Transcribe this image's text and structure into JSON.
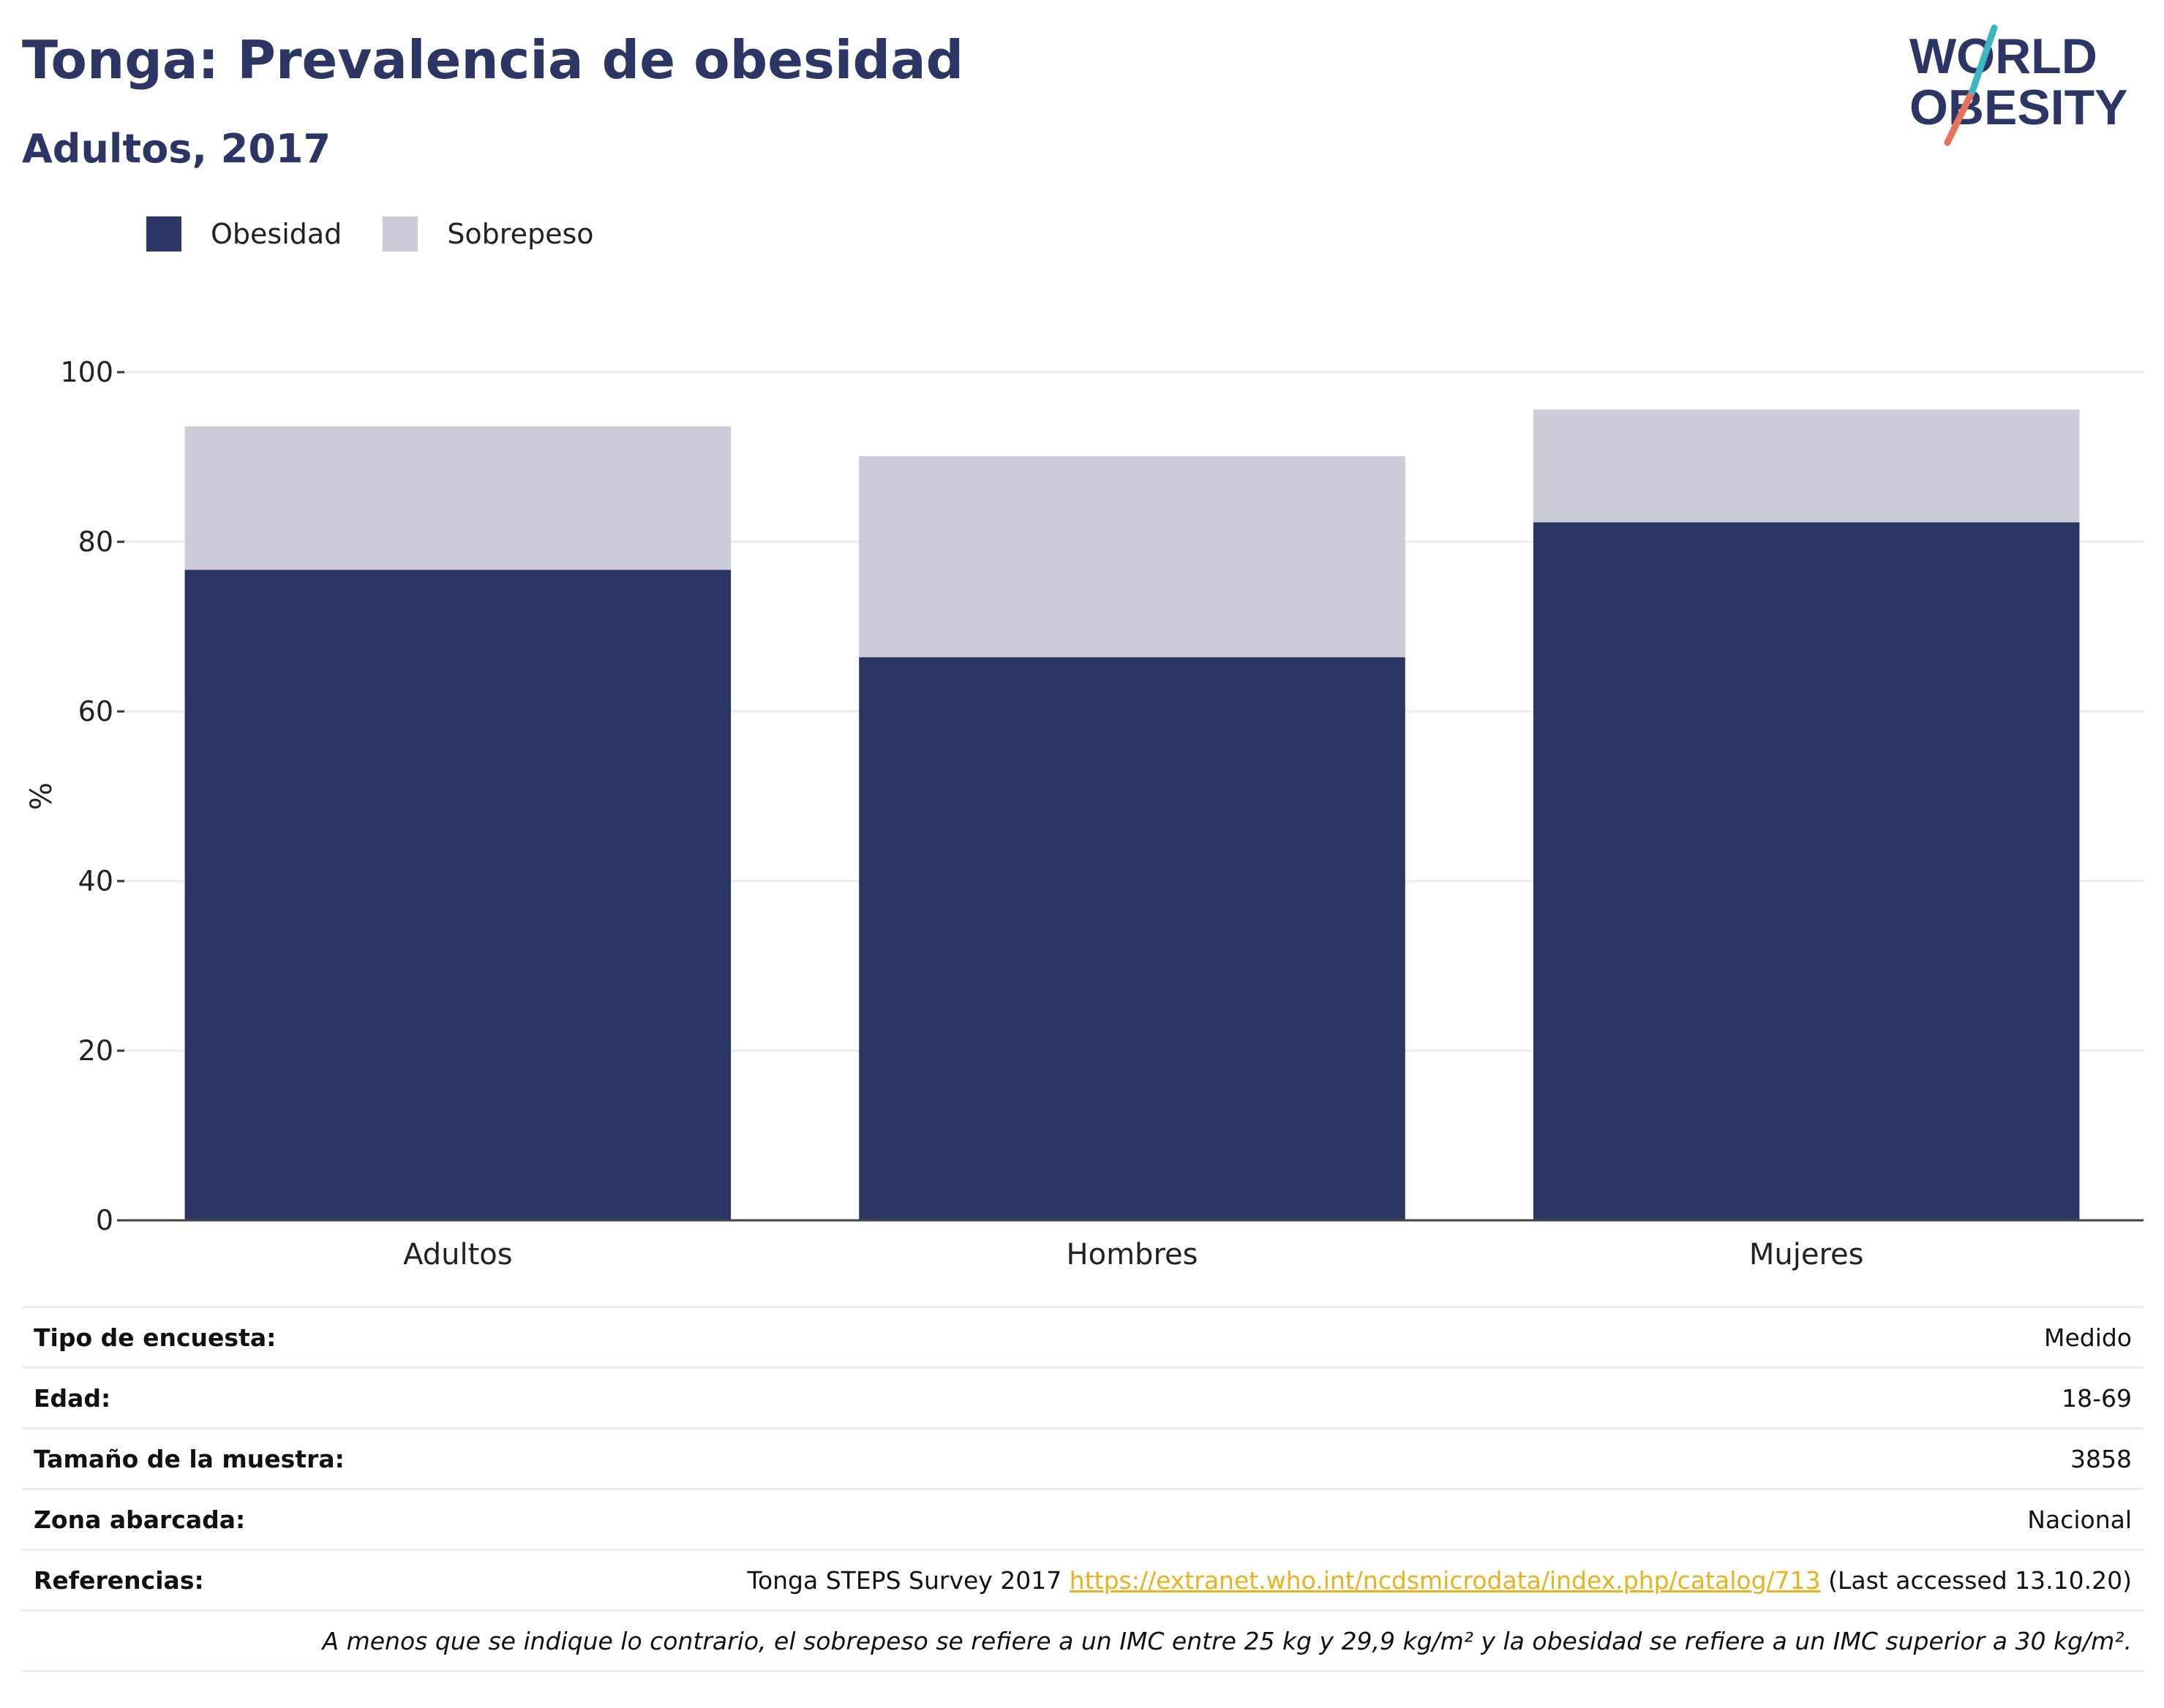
{
  "header": {
    "title": "Tonga: Prevalencia de obesidad",
    "subtitle": "Adultos, 2017"
  },
  "logo": {
    "line1": "WORLD",
    "line2": "OBESITY"
  },
  "colors": {
    "obesidad": "#2b3664",
    "sobrepeso": "#cbccd8",
    "title": "#2b3664",
    "link": "#e8b21f"
  },
  "chart_data": {
    "type": "bar",
    "stacked": true,
    "categories": [
      "Adultos",
      "Hombres",
      "Mujeres"
    ],
    "series": [
      {
        "name": "Obesidad",
        "values": [
          76.7,
          66.4,
          82.3
        ]
      },
      {
        "name": "Sobrepeso",
        "values": [
          16.9,
          23.7,
          13.3
        ]
      }
    ],
    "ylabel": "%",
    "ylim": [
      0,
      100
    ],
    "yticks": [
      0,
      20,
      40,
      60,
      80,
      100
    ],
    "grid": true,
    "legend": "top-left"
  },
  "meta": {
    "rows": [
      {
        "label": "Tipo de encuesta:",
        "value": "Medido"
      },
      {
        "label": "Edad:",
        "value": "18-69"
      },
      {
        "label": "Tamaño de la muestra:",
        "value": "3858"
      },
      {
        "label": "Zona abarcada:",
        "value": "Nacional"
      }
    ],
    "ref_label": "Referencias:",
    "ref_text": "Tonga STEPS Survey 2017",
    "ref_link": "https://extranet.who.int/ncdsmicrodata/index.php/catalog/713",
    "ref_suffix": "(Last accessed 13.10.20)",
    "footnote": "A menos que se indique lo contrario, el sobrepeso se refiere a un IMC entre 25 kg y 29,9 kg/m² y la obesidad se refiere a un IMC superior a 30 kg/m²."
  }
}
